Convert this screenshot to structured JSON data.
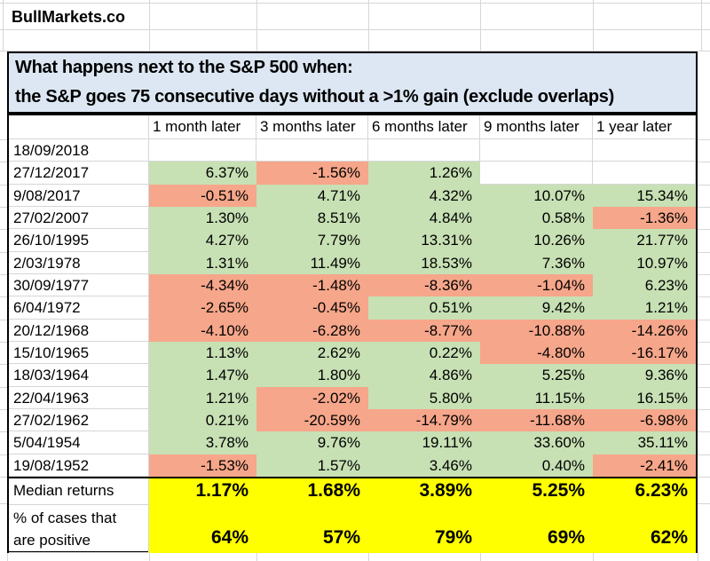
{
  "brand": "BullMarkets.co",
  "title": {
    "line1": "What happens next to the S&P 500 when:",
    "line2": "the S&P goes 75 consecutive days without a >1% gain (exclude overlaps)"
  },
  "chart_data": {
    "type": "table",
    "title": "What happens next to the S&P 500 when: the S&P goes 75 consecutive days without a >1% gain (exclude overlaps)",
    "columns": [
      "",
      "1 month later",
      "3 months later",
      "6 months later",
      "9 months later",
      "1 year later"
    ],
    "rows": [
      {
        "date": "18/09/2018",
        "values": [
          "",
          "",
          "",
          "",
          ""
        ],
        "fills": [
          "none",
          "none",
          "none",
          "none",
          "none"
        ]
      },
      {
        "date": "27/12/2017",
        "values": [
          "6.37%",
          "-1.56%",
          "1.26%",
          "",
          ""
        ],
        "fills": [
          "green",
          "red",
          "green",
          "none",
          "none"
        ]
      },
      {
        "date": "9/08/2017",
        "values": [
          "-0.51%",
          "4.71%",
          "4.32%",
          "10.07%",
          "15.34%"
        ],
        "fills": [
          "red",
          "green",
          "green",
          "green",
          "green"
        ]
      },
      {
        "date": "27/02/2007",
        "values": [
          "1.30%",
          "8.51%",
          "4.84%",
          "0.58%",
          "-1.36%"
        ],
        "fills": [
          "green",
          "green",
          "green",
          "green",
          "red"
        ]
      },
      {
        "date": "26/10/1995",
        "values": [
          "4.27%",
          "7.79%",
          "13.31%",
          "10.26%",
          "21.77%"
        ],
        "fills": [
          "green",
          "green",
          "green",
          "green",
          "green"
        ]
      },
      {
        "date": "2/03/1978",
        "values": [
          "1.31%",
          "11.49%",
          "18.53%",
          "7.36%",
          "10.97%"
        ],
        "fills": [
          "green",
          "green",
          "green",
          "green",
          "green"
        ]
      },
      {
        "date": "30/09/1977",
        "values": [
          "-4.34%",
          "-1.48%",
          "-8.36%",
          "-1.04%",
          "6.23%"
        ],
        "fills": [
          "red",
          "red",
          "red",
          "red",
          "green"
        ]
      },
      {
        "date": "6/04/1972",
        "values": [
          "-2.65%",
          "-0.45%",
          "0.51%",
          "9.42%",
          "1.21%"
        ],
        "fills": [
          "red",
          "red",
          "green",
          "green",
          "green"
        ]
      },
      {
        "date": "20/12/1968",
        "values": [
          "-4.10%",
          "-6.28%",
          "-8.77%",
          "-10.88%",
          "-14.26%"
        ],
        "fills": [
          "red",
          "red",
          "red",
          "red",
          "red"
        ]
      },
      {
        "date": "15/10/1965",
        "values": [
          "1.13%",
          "2.62%",
          "0.22%",
          "-4.80%",
          "-16.17%"
        ],
        "fills": [
          "green",
          "green",
          "green",
          "red",
          "red"
        ]
      },
      {
        "date": "18/03/1964",
        "values": [
          "1.47%",
          "1.80%",
          "4.86%",
          "5.25%",
          "9.36%"
        ],
        "fills": [
          "green",
          "green",
          "green",
          "green",
          "green"
        ]
      },
      {
        "date": "22/04/1963",
        "values": [
          "1.21%",
          "-2.02%",
          "5.80%",
          "11.15%",
          "16.15%"
        ],
        "fills": [
          "green",
          "red",
          "green",
          "green",
          "green"
        ]
      },
      {
        "date": "27/02/1962",
        "values": [
          "0.21%",
          "-20.59%",
          "-14.79%",
          "-11.68%",
          "-6.98%"
        ],
        "fills": [
          "green",
          "red",
          "red",
          "red",
          "red"
        ]
      },
      {
        "date": "5/04/1954",
        "values": [
          "3.78%",
          "9.76%",
          "19.11%",
          "33.60%",
          "35.11%"
        ],
        "fills": [
          "green",
          "green",
          "green",
          "green",
          "green"
        ]
      },
      {
        "date": "19/08/1952",
        "values": [
          "-1.53%",
          "1.57%",
          "3.46%",
          "0.40%",
          "-2.41%"
        ],
        "fills": [
          "red",
          "green",
          "green",
          "green",
          "red"
        ]
      }
    ],
    "summary": {
      "median_label": "Median returns",
      "median_values": [
        "1.17%",
        "1.68%",
        "3.89%",
        "5.25%",
        "6.23%"
      ],
      "pct_label_line1": "% of cases that",
      "pct_label_line2": "are positive",
      "pct_values": [
        "64%",
        "57%",
        "79%",
        "69%",
        "62%"
      ]
    },
    "legend": {
      "positive_fill_meaning": "positive return",
      "negative_fill_meaning": "negative return"
    }
  },
  "colors": {
    "positive_fill": "#c7e0b4",
    "negative_fill": "#f6a68a",
    "summary_fill": "#ffff00",
    "title_fill": "#dce7f3",
    "gridline": "#d6d6d6",
    "border": "#000000"
  }
}
